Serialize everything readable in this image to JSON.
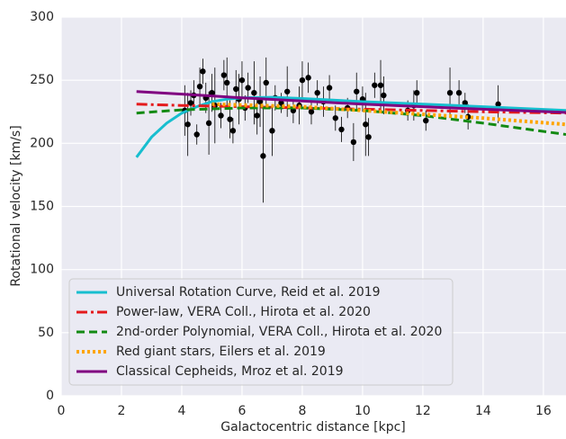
{
  "chart_data": {
    "type": "scatter",
    "xlabel": "Galactocentric distance [kpc]",
    "ylabel": "Rotational velocity [km/s]",
    "xlim": [
      0,
      16.75
    ],
    "ylim": [
      0,
      300
    ],
    "xticks": [
      0,
      2,
      4,
      6,
      8,
      10,
      12,
      14,
      16
    ],
    "yticks": [
      0,
      50,
      100,
      150,
      200,
      250,
      300
    ],
    "grid": true,
    "legend": "lower left",
    "series": [
      {
        "kind": "errorbar",
        "color": "#000000",
        "x": [
          4.1,
          4.2,
          4.3,
          4.4,
          4.5,
          4.6,
          4.7,
          4.8,
          4.9,
          5.0,
          5.1,
          5.3,
          5.4,
          5.5,
          5.6,
          5.7,
          5.8,
          5.9,
          6.0,
          6.1,
          6.2,
          6.4,
          6.5,
          6.6,
          6.7,
          6.8,
          7.0,
          7.1,
          7.3,
          7.5,
          7.7,
          7.9,
          8.0,
          8.2,
          8.3,
          8.5,
          8.7,
          8.9,
          9.1,
          9.3,
          9.5,
          9.7,
          9.8,
          10.0,
          10.1,
          10.2,
          10.4,
          10.6,
          10.7,
          11.5,
          11.7,
          11.8,
          12.1,
          12.9,
          13.2,
          13.4,
          13.5,
          14.5
        ],
        "values": [
          226,
          215,
          232,
          238,
          207,
          245,
          257,
          236,
          216,
          240,
          230,
          222,
          254,
          248,
          219,
          210,
          243,
          235,
          250,
          228,
          244,
          240,
          222,
          233,
          190,
          248,
          210,
          236,
          232,
          241,
          226,
          230,
          250,
          252,
          225,
          240,
          233,
          244,
          220,
          211,
          228,
          201,
          241,
          235,
          215,
          205,
          246,
          246,
          238,
          226,
          230,
          240,
          218,
          240,
          240,
          232,
          221,
          231
        ],
        "errors": [
          20,
          25,
          10,
          12,
          8,
          15,
          10,
          12,
          25,
          15,
          30,
          10,
          12,
          20,
          15,
          10,
          15,
          20,
          15,
          10,
          12,
          25,
          15,
          20,
          37,
          20,
          20,
          10,
          8,
          20,
          10,
          15,
          15,
          12,
          10,
          10,
          12,
          10,
          10,
          10,
          8,
          15,
          15,
          10,
          25,
          15,
          10,
          20,
          15,
          8,
          12,
          10,
          8,
          20,
          10,
          8,
          10,
          15
        ]
      },
      {
        "kind": "line",
        "name": "Universal Rotation Curve, Reid et al. 2019",
        "color": "#17becf",
        "style": "solid",
        "x": [
          2.5,
          3,
          3.5,
          4,
          4.5,
          5,
          5.5,
          6,
          7,
          8,
          10,
          12,
          14,
          16.75
        ],
        "values": [
          189,
          205,
          216,
          224,
          229,
          233,
          235,
          236,
          236.5,
          235.5,
          233,
          231,
          229,
          226
        ]
      },
      {
        "kind": "line",
        "name": "Power-law, VERA Coll., Hirota et al. 2020",
        "color": "#e41a1c",
        "style": "dashdot",
        "x": [
          2.5,
          4,
          6,
          8,
          10,
          12,
          14,
          16.75
        ],
        "values": [
          231,
          230,
          229,
          228,
          227,
          226,
          225,
          224
        ]
      },
      {
        "kind": "line",
        "name": "2nd-order Polynomial, VERA Coll., Hirota et al. 2020",
        "color": "#138a13",
        "style": "dashed",
        "x": [
          2.5,
          4,
          6,
          8,
          10,
          12,
          14,
          16.75
        ],
        "values": [
          224,
          226.5,
          228,
          228,
          226,
          222,
          216,
          207
        ]
      },
      {
        "kind": "line",
        "name": "Red giant stars, Eilers et al. 2019",
        "color": "#ffa500",
        "style": "dotted",
        "x": [
          5,
          8,
          10,
          12,
          14,
          16.75
        ],
        "values": [
          231,
          229,
          226,
          223,
          220,
          215
        ]
      },
      {
        "kind": "line",
        "name": "Classical Cepheids, Mroz et al. 2019",
        "color": "#800080",
        "style": "solid",
        "x": [
          2.5,
          4,
          6,
          8,
          10,
          12,
          14,
          16.75
        ],
        "values": [
          241,
          239,
          236,
          233.5,
          231,
          229,
          227,
          224.5
        ]
      }
    ]
  }
}
